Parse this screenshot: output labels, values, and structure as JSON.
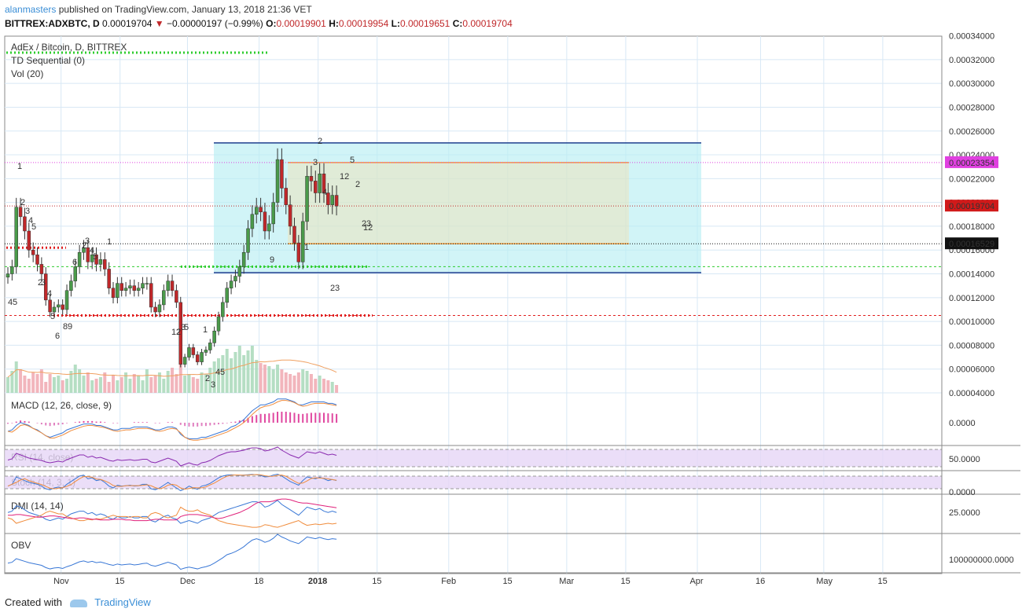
{
  "header": {
    "author": "alanmasters",
    "published_text": "published on TradingView.com, January 13, 2018 21:36 VET",
    "symbol": "BITTREX:ADXBTC, D",
    "last": "0.00019704",
    "change": "−0.00000197 (−0.99%)",
    "o_label": "O:",
    "o": "0.00019901",
    "h_label": "H:",
    "h": "0.00019954",
    "l_label": "L:",
    "l": "0.00019651",
    "c_label": "C:",
    "c": "0.00019704"
  },
  "legend": {
    "title": "AdEx / Bitcoin, D, BITTREX",
    "td": "TD Sequential (0)",
    "vol": "Vol (20)"
  },
  "panels": {
    "macd": {
      "title": "MACD (12, 26, close, 9)",
      "tick": "0.0000"
    },
    "rsi": {
      "title": "RSI (14, close)",
      "tick": "50.0000"
    },
    "stoch": {
      "title": "Stoch (14, 3, 1)",
      "tick": "0.0000"
    },
    "dmi": {
      "title": "DMI (14, 14)",
      "tick": "25.0000"
    },
    "obv": {
      "title": "OBV",
      "tick": "100000000.0000"
    }
  },
  "price_tags": [
    {
      "value": "0.00023354",
      "color": "#e040e0"
    },
    {
      "value": "0.00019704",
      "color": "#d11a1a"
    },
    {
      "value": "0.00016529",
      "color": "#111111"
    }
  ],
  "footer": {
    "created": "Created with",
    "brand": "TradingView"
  },
  "colors": {
    "up": "#4a9a4a",
    "down": "#c0282a",
    "grid": "#d8e8f5",
    "channel": "#1f3f8f",
    "box_fill": "#b8eef2"
  },
  "chart_data": {
    "type": "candlestick",
    "title": "AdEx / Bitcoin, D, BITTREX",
    "y_ticks": [
      "0.00004000",
      "0.00006000",
      "0.00008000",
      "0.00010000",
      "0.00012000",
      "0.00014000",
      "0.00016000",
      "0.00018000",
      "0.00020000",
      "0.00022000",
      "0.00024000",
      "0.00026000",
      "0.00028000",
      "0.00030000",
      "0.00032000",
      "0.00034000"
    ],
    "ylim": [
      4e-05,
      0.000345
    ],
    "x_tick_labels": [
      "Nov",
      "15",
      "Dec",
      "18",
      "2018",
      "15",
      "Feb",
      "15",
      "Mar",
      "15",
      "Apr",
      "16",
      "May",
      "15"
    ],
    "x_tick_dates": [
      "2017-11-01",
      "2017-11-15",
      "2017-12-01",
      "2017-12-18",
      "2018-01-01",
      "2018-01-15",
      "2018-02-01",
      "2018-02-15",
      "2018-03-01",
      "2018-03-15",
      "2018-04-01",
      "2018-04-16",
      "2018-05-01",
      "2018-05-15"
    ],
    "close": [
      0.00014,
      0.000146,
      0.000196,
      0.000188,
      0.000176,
      0.00016,
      0.000156,
      0.000148,
      0.00014,
      0.000118,
      0.000108,
      0.000112,
      0.000114,
      0.00011,
      0.000126,
      0.000134,
      0.000146,
      0.000158,
      0.000162,
      0.00015,
      0.000156,
      0.000148,
      0.000152,
      0.000144,
      0.000128,
      0.00012,
      0.000132,
      0.000126,
      0.000128,
      0.00013,
      0.000126,
      0.000128,
      0.000132,
      0.000132,
      0.000112,
      0.000108,
      0.000114,
      0.000126,
      0.000134,
      0.000126,
      0.000116,
      6.4e-05,
      7e-05,
      7.8e-05,
      7.2e-05,
      6.6e-05,
      7.4e-05,
      7.6e-05,
      8.2e-05,
      9.2e-05,
      0.000104,
      0.000116,
      0.000128,
      0.000134,
      0.000138,
      0.000146,
      0.000158,
      0.000178,
      0.00019,
      0.000196,
      0.000192,
      0.000176,
      0.000182,
      0.0002,
      0.000236,
      0.000212,
      0.000198,
      0.00018,
      0.000166,
      0.00015,
      0.000184,
      0.000222,
      0.000218,
      0.000208,
      0.000224,
      0.000208,
      0.000198,
      0.000206,
      0.000197
    ],
    "td_numbers_up": [
      "1",
      "2",
      "3",
      "4",
      "5",
      "1",
      "2",
      "3",
      "4",
      "5",
      "6",
      "9",
      "2",
      "3",
      "4",
      "5",
      "12",
      "2"
    ],
    "td_numbers_down": [
      "4",
      "5",
      "2",
      "3",
      "4",
      "5",
      "6",
      "8",
      "9",
      "2",
      "3",
      "5",
      "12",
      "2",
      "3",
      "4",
      "5",
      "1",
      "2",
      "3",
      "1",
      "2",
      "3",
      "12"
    ],
    "volume": [
      20,
      28,
      40,
      30,
      22,
      18,
      26,
      24,
      30,
      14,
      24,
      20,
      22,
      16,
      18,
      28,
      36,
      30,
      22,
      26,
      16,
      18,
      20,
      26,
      14,
      22,
      16,
      20,
      26,
      18,
      24,
      22,
      16,
      30,
      20,
      22,
      26,
      18,
      28,
      32,
      24,
      40,
      22,
      24,
      20,
      18,
      26,
      24,
      32,
      40,
      44,
      48,
      56,
      44,
      52,
      60,
      48,
      54,
      60,
      42,
      38,
      36,
      34,
      30,
      36,
      30,
      26,
      24,
      22,
      26,
      30,
      28,
      24,
      18,
      22,
      18,
      16,
      14,
      10
    ],
    "macd": [
      -2,
      -1,
      2,
      4,
      3,
      2,
      0,
      -1,
      -3,
      -5,
      -6,
      -5,
      -4,
      -3,
      -1,
      0,
      1,
      2,
      3,
      3,
      3,
      2,
      2,
      1,
      0,
      -1,
      -1,
      0,
      0,
      0,
      1,
      1,
      1,
      1,
      0,
      -1,
      -1,
      0,
      1,
      1,
      0,
      -4,
      -6,
      -7,
      -7,
      -7,
      -6,
      -6,
      -5,
      -4,
      -3,
      -2,
      -1,
      1,
      2,
      4,
      6,
      9,
      12,
      14,
      16,
      16,
      17,
      18,
      20,
      20,
      20,
      19,
      18,
      16,
      16,
      17,
      18,
      18,
      18,
      18,
      17,
      17,
      16
    ],
    "rsi": [
      45,
      48,
      62,
      58,
      54,
      50,
      48,
      46,
      44,
      40,
      38,
      40,
      42,
      40,
      46,
      50,
      54,
      58,
      58,
      52,
      55,
      50,
      52,
      48,
      44,
      42,
      46,
      44,
      45,
      46,
      44,
      45,
      47,
      47,
      40,
      38,
      42,
      46,
      50,
      46,
      42,
      30,
      34,
      38,
      34,
      32,
      38,
      40,
      44,
      50,
      56,
      60,
      64,
      66,
      66,
      68,
      70,
      74,
      76,
      76,
      74,
      68,
      70,
      74,
      78,
      70,
      64,
      58,
      54,
      50,
      58,
      66,
      64,
      62,
      66,
      62,
      58,
      60,
      57
    ],
    "stoch_k": [
      30,
      40,
      80,
      70,
      60,
      50,
      45,
      40,
      30,
      15,
      10,
      20,
      25,
      20,
      40,
      55,
      70,
      85,
      90,
      70,
      75,
      60,
      65,
      50,
      30,
      20,
      35,
      30,
      32,
      35,
      30,
      32,
      40,
      40,
      15,
      10,
      20,
      35,
      50,
      35,
      20,
      5,
      15,
      30,
      20,
      12,
      30,
      35,
      45,
      60,
      75,
      85,
      90,
      92,
      90,
      88,
      90,
      92,
      94,
      92,
      88,
      80,
      82,
      90,
      95,
      85,
      70,
      55,
      45,
      35,
      60,
      80,
      75,
      70,
      78,
      70,
      60,
      66,
      60
    ],
    "dmi_plus": [
      30,
      32,
      40,
      38,
      34,
      30,
      28,
      26,
      24,
      20,
      18,
      20,
      22,
      20,
      24,
      28,
      30,
      32,
      32,
      28,
      30,
      26,
      28,
      26,
      22,
      20,
      24,
      22,
      22,
      24,
      22,
      22,
      24,
      24,
      18,
      16,
      20,
      24,
      26,
      22,
      20,
      14,
      16,
      18,
      16,
      14,
      18,
      20,
      22,
      26,
      30,
      32,
      34,
      36,
      38,
      40,
      42,
      44,
      46,
      46,
      44,
      38,
      40,
      44,
      48,
      42,
      38,
      34,
      30,
      26,
      32,
      38,
      36,
      34,
      36,
      32,
      30,
      32,
      30
    ],
    "dmi_minus": [
      22,
      20,
      14,
      16,
      18,
      20,
      22,
      24,
      26,
      30,
      32,
      30,
      28,
      28,
      24,
      22,
      20,
      18,
      18,
      20,
      19,
      21,
      20,
      22,
      24,
      26,
      24,
      24,
      24,
      23,
      24,
      24,
      22,
      22,
      28,
      30,
      28,
      24,
      22,
      24,
      26,
      38,
      34,
      32,
      32,
      34,
      30,
      28,
      26,
      22,
      18,
      16,
      14,
      13,
      12,
      11,
      10,
      9,
      8,
      8,
      9,
      12,
      11,
      9,
      8,
      10,
      12,
      14,
      16,
      18,
      14,
      11,
      12,
      13,
      12,
      13,
      14,
      13,
      14
    ],
    "adx": [
      26,
      26,
      27,
      27,
      26,
      25,
      24,
      23,
      23,
      24,
      25,
      25,
      24,
      23,
      22,
      21,
      21,
      22,
      22,
      21,
      20,
      20,
      19,
      19,
      19,
      20,
      20,
      20,
      19,
      19,
      18,
      18,
      18,
      18,
      19,
      20,
      20,
      19,
      19,
      19,
      19,
      24,
      26,
      27,
      27,
      27,
      26,
      25,
      24,
      22,
      21,
      22,
      24,
      26,
      28,
      30,
      33,
      36,
      40,
      44,
      46,
      46,
      46,
      47,
      49,
      50,
      50,
      49,
      47,
      45,
      44,
      44,
      43,
      42,
      41,
      40,
      39,
      38,
      37
    ],
    "obv": [
      -60,
      -56,
      -40,
      -46,
      -52,
      -58,
      -62,
      -66,
      -70,
      -80,
      -86,
      -82,
      -80,
      -84,
      -76,
      -70,
      -62,
      -54,
      -50,
      -56,
      -52,
      -58,
      -55,
      -60,
      -66,
      -70,
      -64,
      -68,
      -66,
      -64,
      -68,
      -66,
      -62,
      -60,
      -70,
      -74,
      -68,
      -62,
      -56,
      -62,
      -68,
      -88,
      -82,
      -78,
      -82,
      -86,
      -80,
      -76,
      -70,
      -60,
      -48,
      -36,
      -22,
      -16,
      -8,
      2,
      14,
      30,
      44,
      50,
      44,
      34,
      40,
      52,
      70,
      58,
      50,
      40,
      34,
      28,
      42,
      58,
      54,
      50,
      56,
      50,
      46,
      50,
      48
    ]
  }
}
